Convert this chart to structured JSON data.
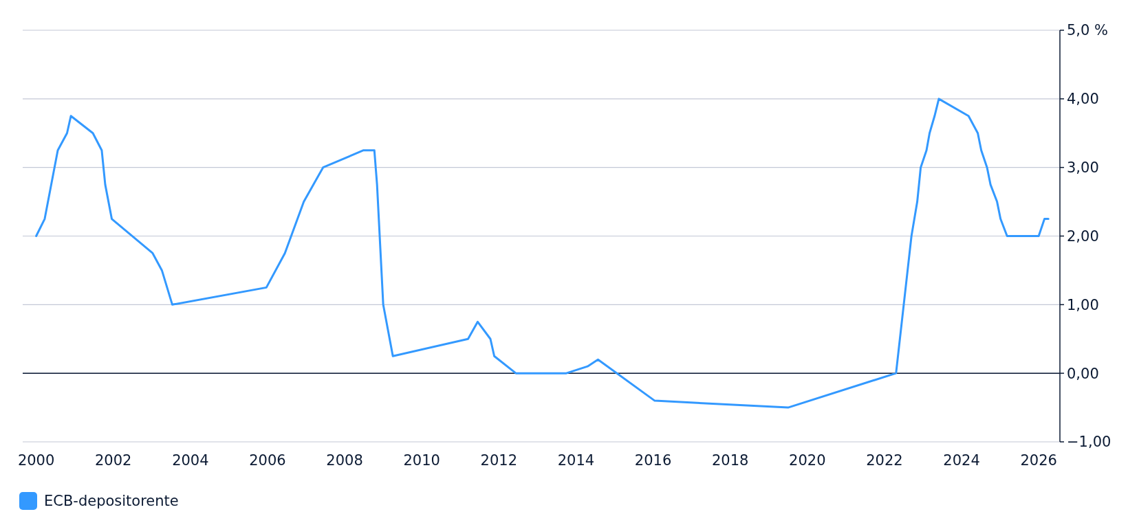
{
  "chart_data": {
    "type": "line",
    "x": [
      2000.0,
      2000.22,
      2000.56,
      2000.8,
      2000.9,
      2001.47,
      2001.7,
      2001.79,
      2001.96,
      2003.02,
      2003.26,
      2003.53,
      2005.97,
      2006.45,
      2006.94,
      2007.44,
      2008.49,
      2008.77,
      2008.84,
      2009.0,
      2009.25,
      2011.2,
      2011.45,
      2011.78,
      2011.88,
      2012.44,
      2013.75,
      2014.3,
      2014.57,
      2016.04,
      2019.5,
      2022.3,
      2022.6,
      2022.7,
      2022.85,
      2022.94,
      2023.09,
      2023.17,
      2023.3,
      2023.41,
      2024.18,
      2024.42,
      2024.51,
      2024.66,
      2024.75,
      2024.92,
      2025.01,
      2025.18,
      2026.0,
      2026.15,
      2026.25
    ],
    "series": [
      {
        "name": "ECB-depositorente",
        "color": "#3399ff",
        "values": [
          2.0,
          2.25,
          3.25,
          3.5,
          3.75,
          3.5,
          3.25,
          2.75,
          2.25,
          1.75,
          1.5,
          1.0,
          1.25,
          1.75,
          2.5,
          3.0,
          3.25,
          3.25,
          2.75,
          1.0,
          0.25,
          0.5,
          0.75,
          0.5,
          0.25,
          0.0,
          0.0,
          0.1,
          0.2,
          -0.4,
          -0.5,
          0.0,
          1.5,
          2.0,
          2.5,
          3.0,
          3.25,
          3.5,
          3.75,
          4.0,
          3.75,
          3.5,
          3.25,
          3.0,
          2.75,
          2.5,
          2.25,
          2.0,
          2.0,
          2.25,
          2.25
        ]
      }
    ],
    "xlim": [
      1999.65,
      2026.55
    ],
    "xticks": [
      2000,
      2002,
      2004,
      2006,
      2008,
      2010,
      2012,
      2014,
      2016,
      2018,
      2020,
      2022,
      2024,
      2026
    ],
    "ylim": [
      -1,
      5
    ],
    "yticks": [
      {
        "value": -1,
        "label": "−1,00"
      },
      {
        "value": 0,
        "label": "0,00"
      },
      {
        "value": 1,
        "label": "1,00"
      },
      {
        "value": 2,
        "label": "2,00"
      },
      {
        "value": 3,
        "label": "3,00"
      },
      {
        "value": 4,
        "label": "4,00"
      },
      {
        "value": 5,
        "label": "5,0 %"
      }
    ],
    "grid": "y",
    "ref_lines": [
      {
        "axis": "y",
        "value": 0,
        "color": "#0b1a33"
      }
    ],
    "legend": "bottom left",
    "marker": "none",
    "line_style": "solid"
  }
}
